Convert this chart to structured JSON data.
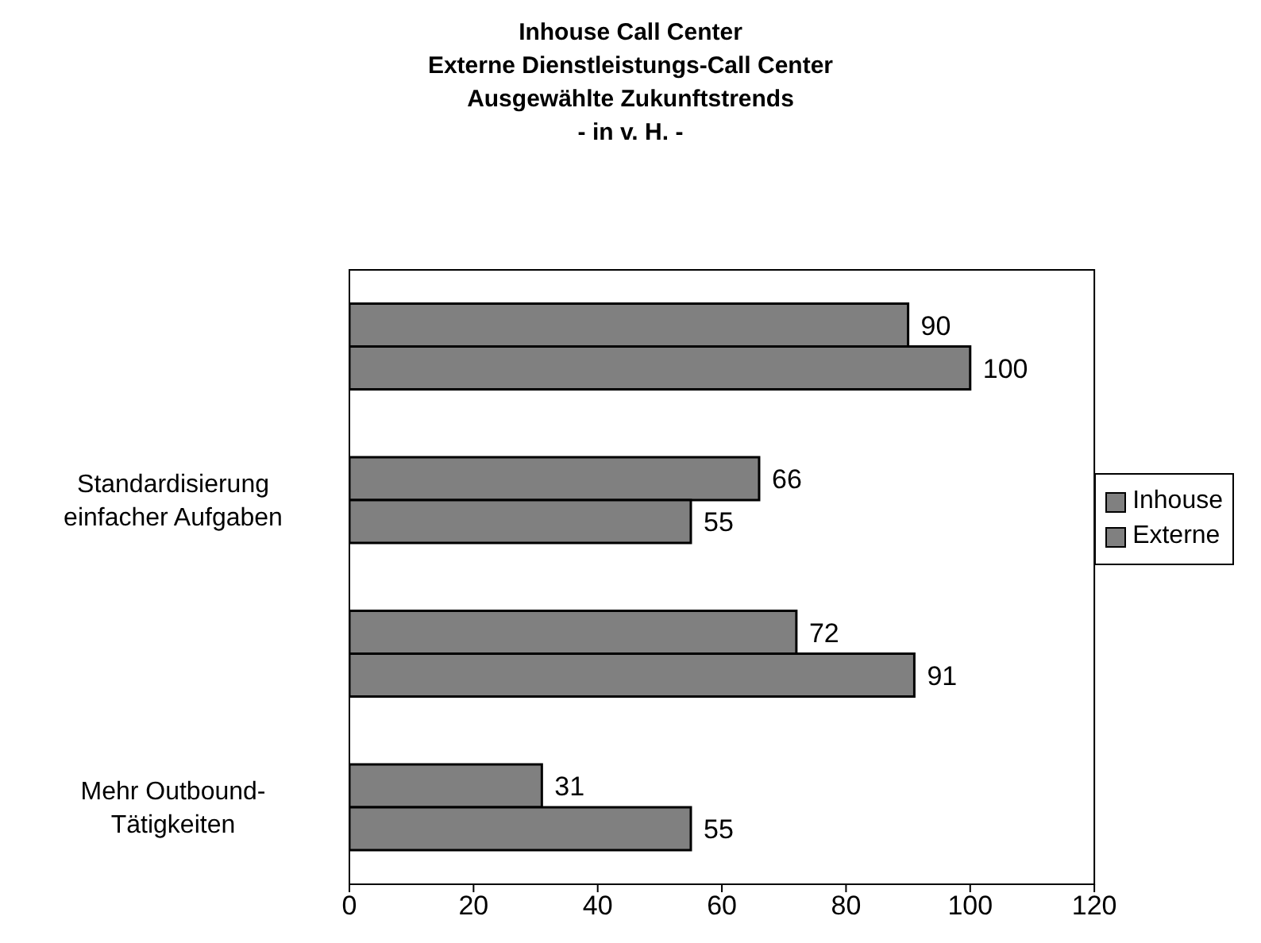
{
  "chart_data": {
    "type": "bar",
    "orientation": "horizontal",
    "title": "Inhouse Call Center\nExterne Dienstleistungs-Call Center\nAusgewählte Zukunftstrends\n- in v. H. -",
    "categories": [
      null,
      "Standardisierung einfacher Aufgaben",
      null,
      "Mehr Outbound-Tätigkeiten"
    ],
    "series": [
      {
        "name": "Inhouse",
        "color": "#808080",
        "values": [
          90,
          66,
          72,
          31
        ]
      },
      {
        "name": "Externe",
        "color": "#808080",
        "values": [
          100,
          55,
          91,
          55
        ]
      }
    ],
    "xlim": [
      0,
      120
    ],
    "xticks": [
      0,
      20,
      40,
      60,
      80,
      100,
      120
    ],
    "data_labels": true,
    "legend": "right",
    "grid": false
  }
}
